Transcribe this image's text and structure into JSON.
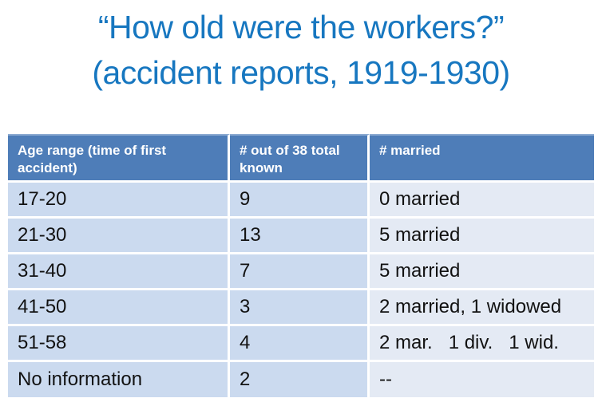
{
  "title": {
    "line1": "“How old were the workers?”",
    "line2": "(accident reports, 1919-1930)"
  },
  "table": {
    "headers": [
      "Age range (time of first accident)",
      "# out of 38 total known",
      "# married"
    ],
    "rows": [
      [
        "17-20",
        "9",
        "0 married"
      ],
      [
        "21-30",
        "13",
        "5 married"
      ],
      [
        "31-40",
        "7",
        "5 married"
      ],
      [
        "41-50",
        "3",
        "2 married, 1 widowed"
      ],
      [
        "51-58",
        "4",
        "2 mar.   1 div.   1 wid."
      ],
      [
        "No information",
        "2",
        "--"
      ]
    ]
  },
  "colors": {
    "title_color": "#1777c0",
    "header_bg": "#4e7db8",
    "cell_bg": "#cbdaef",
    "cell3_bg": "#e4eaf4"
  }
}
